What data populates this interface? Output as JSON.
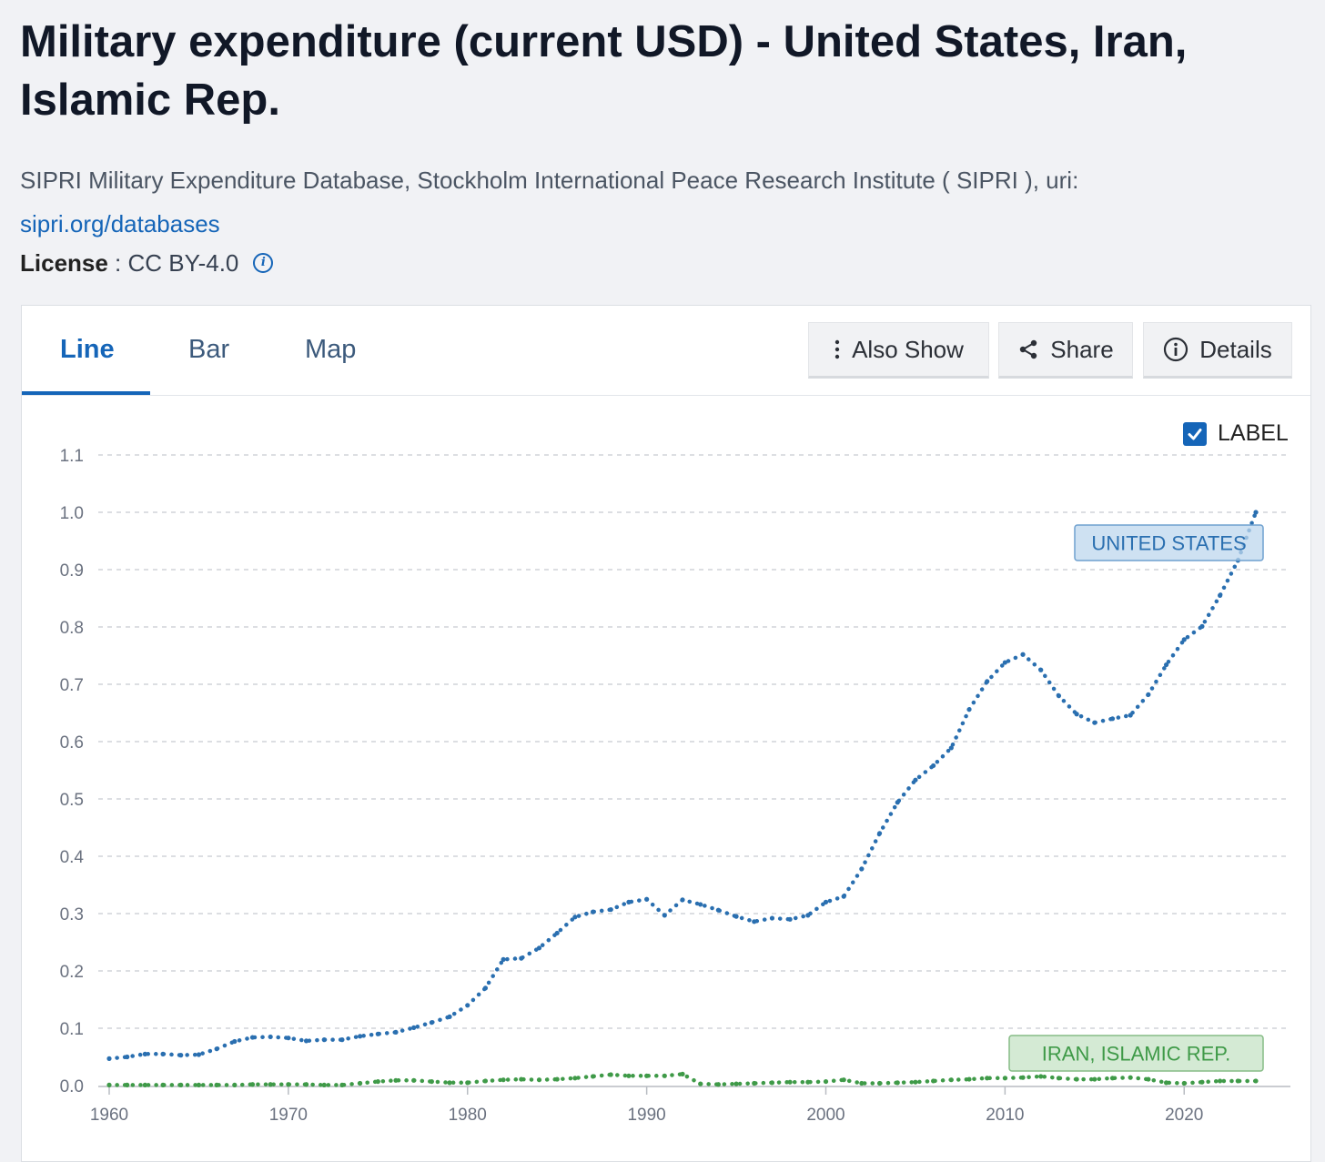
{
  "page": {
    "title": "Military expenditure (current USD) - United States, Iran, Islamic Rep.",
    "source_text": "SIPRI Military Expenditure Database, Stockholm International Peace Research Institute ( SIPRI ), uri:",
    "source_link": "sipri.org/databases",
    "license_label": "License",
    "license_sep": " : ",
    "license_value": "CC BY-4.0"
  },
  "tabs": [
    {
      "label": "Line",
      "active": true
    },
    {
      "label": "Bar",
      "active": false
    },
    {
      "label": "Map",
      "active": false
    }
  ],
  "toolbar": {
    "also_show": "Also Show",
    "share": "Share",
    "details": "Details",
    "label_toggle": "LABEL",
    "label_checked": true
  },
  "icons": {
    "info": "info-icon",
    "more": "more-vertical-icon",
    "share": "share-icon",
    "check": "check-icon"
  },
  "colors": {
    "accent": "#1565b8",
    "us_series": "#2a6fb0",
    "iran_series": "#3f9a48",
    "grid": "#d0d4d9"
  },
  "chart_data": {
    "type": "line",
    "title": "",
    "xlabel": "",
    "ylabel": "",
    "xlim": [
      1960,
      2024
    ],
    "ylim": [
      0,
      1.1
    ],
    "grid": true,
    "y_ticks": [
      "0.0",
      "0.1",
      "0.2",
      "0.3",
      "0.4",
      "0.5",
      "0.6",
      "0.7",
      "0.8",
      "0.9",
      "1.0",
      "1.1"
    ],
    "x_ticks": [
      "1960",
      "1970",
      "1980",
      "1990",
      "2000",
      "2010",
      "2020"
    ],
    "x": [
      1960,
      1961,
      1962,
      1963,
      1964,
      1965,
      1966,
      1967,
      1968,
      1969,
      1970,
      1971,
      1972,
      1973,
      1974,
      1975,
      1976,
      1977,
      1978,
      1979,
      1980,
      1981,
      1982,
      1983,
      1984,
      1985,
      1986,
      1987,
      1988,
      1989,
      1990,
      1991,
      1992,
      1993,
      1994,
      1995,
      1996,
      1997,
      1998,
      1999,
      2000,
      2001,
      2002,
      2003,
      2004,
      2005,
      2006,
      2007,
      2008,
      2009,
      2010,
      2011,
      2012,
      2013,
      2014,
      2015,
      2016,
      2017,
      2018,
      2019,
      2020,
      2021,
      2022,
      2023,
      2024
    ],
    "series": [
      {
        "name": "UNITED STATES",
        "color": "#2a6fb0",
        "values": [
          0.047,
          0.05,
          0.055,
          0.055,
          0.053,
          0.054,
          0.064,
          0.077,
          0.084,
          0.085,
          0.083,
          0.078,
          0.08,
          0.08,
          0.086,
          0.09,
          0.093,
          0.101,
          0.11,
          0.12,
          0.14,
          0.17,
          0.22,
          0.222,
          0.24,
          0.266,
          0.294,
          0.303,
          0.307,
          0.32,
          0.325,
          0.297,
          0.324,
          0.316,
          0.306,
          0.295,
          0.286,
          0.292,
          0.29,
          0.297,
          0.32,
          0.33,
          0.378,
          0.44,
          0.494,
          0.533,
          0.558,
          0.589,
          0.656,
          0.705,
          0.738,
          0.752,
          0.725,
          0.68,
          0.648,
          0.633,
          0.64,
          0.646,
          0.682,
          0.734,
          0.778,
          0.801,
          0.855,
          0.916,
          1.0
        ]
      },
      {
        "name": "IRAN, ISLAMIC REP.",
        "color": "#3f9a48",
        "values": [
          0.001,
          0.001,
          0.001,
          0.001,
          0.001,
          0.001,
          0.001,
          0.001,
          0.002,
          0.002,
          0.002,
          0.002,
          0.001,
          0.001,
          0.004,
          0.007,
          0.009,
          0.009,
          0.007,
          0.005,
          0.005,
          0.008,
          0.01,
          0.011,
          0.01,
          0.011,
          0.013,
          0.016,
          0.019,
          0.017,
          0.017,
          0.017,
          0.02,
          0.003,
          0.002,
          0.003,
          0.004,
          0.005,
          0.006,
          0.006,
          0.007,
          0.01,
          0.004,
          0.004,
          0.005,
          0.006,
          0.008,
          0.01,
          0.011,
          0.013,
          0.013,
          0.014,
          0.016,
          0.013,
          0.011,
          0.011,
          0.013,
          0.014,
          0.011,
          0.005,
          0.004,
          0.006,
          0.008,
          0.008,
          0.008
        ]
      }
    ]
  }
}
